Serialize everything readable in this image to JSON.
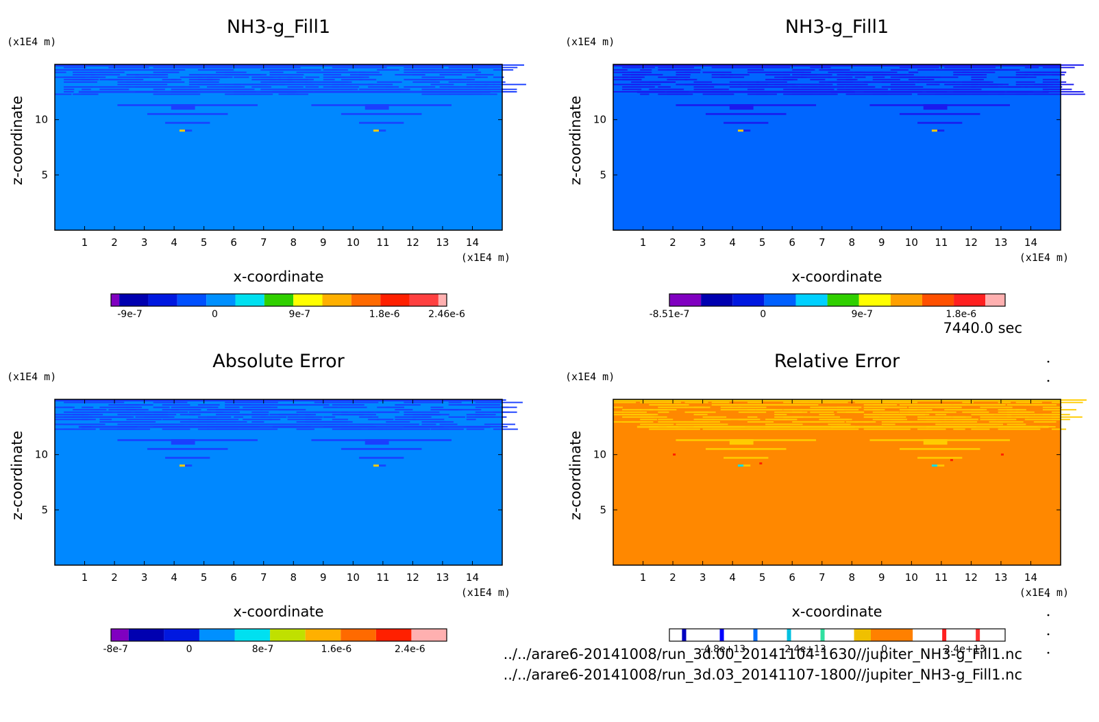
{
  "time_label": "7440.0 sec",
  "files": [
    "../../arare6-20141008/run_3d.00_20141104-1630//jupiter_NH3-g_Fill1.nc",
    "../../arare6-20141008/run_3d.03_20141107-1800//jupiter_NH3-g_Fill1.nc"
  ],
  "chart_data": [
    {
      "type": "heatmap",
      "title": "NH3-g_Fill1",
      "xlabel": "x-coordinate",
      "ylabel": "z-coordinate",
      "x_unit": "(x1E4 m)",
      "y_unit": "(x1E4 m)",
      "xlim": [
        0,
        15
      ],
      "ylim": [
        0,
        15
      ],
      "xticks": [
        "1",
        "2",
        "3",
        "4",
        "5",
        "6",
        "7",
        "8",
        "9",
        "10",
        "11",
        "12",
        "13",
        "14"
      ],
      "yticks": [
        "5",
        "10"
      ],
      "background_color": "#0088ff",
      "feature_color": "#1a3fff",
      "colorbar": {
        "colors": [
          "#8000c0",
          "#0000b0",
          "#0018e0",
          "#0050ff",
          "#0090ff",
          "#00e0f0",
          "#30d000",
          "#ffff00",
          "#ffb000",
          "#ff6a00",
          "#ff2000",
          "#ff4040",
          "#ffb0b0"
        ],
        "widths": [
          1,
          3.5,
          3.5,
          3.5,
          3.5,
          3.5,
          3.5,
          3.5,
          3.5,
          3.5,
          3.5,
          3.5,
          1
        ],
        "labels": [
          "-9e-7",
          "0",
          "9e-7",
          "1.8e-6",
          "2.46e-6"
        ],
        "label_values": [
          -9e-07,
          0,
          9e-07,
          1.8e-06,
          2.46e-06
        ],
        "range": [
          -1.1e-06,
          2.46e-06
        ]
      }
    },
    {
      "type": "heatmap",
      "title": "NH3-g_Fill1",
      "xlabel": "x-coordinate",
      "ylabel": "z-coordinate",
      "x_unit": "(x1E4 m)",
      "y_unit": "(x1E4 m)",
      "xlim": [
        0,
        15
      ],
      "ylim": [
        0,
        15
      ],
      "xticks": [
        "1",
        "2",
        "3",
        "4",
        "5",
        "6",
        "7",
        "8",
        "9",
        "10",
        "11",
        "12",
        "13",
        "14"
      ],
      "yticks": [
        "5",
        "10"
      ],
      "background_color": "#0066ff",
      "feature_color": "#1a1aee",
      "colorbar": {
        "colors": [
          "#8000c0",
          "#0000b0",
          "#0018e0",
          "#0060ff",
          "#00d0ff",
          "#30d000",
          "#ffff00",
          "#ffa000",
          "#ff5000",
          "#ff2020",
          "#ffb0b0"
        ],
        "widths": [
          4,
          4,
          4,
          4,
          4,
          4,
          4,
          4,
          4,
          4,
          2.5
        ],
        "labels": [
          "-8.51e-7",
          "0",
          "9e-7",
          "1.8e-6"
        ],
        "label_values": [
          -8.51e-07,
          0,
          9e-07,
          1.8e-06
        ],
        "range": [
          -8.51e-07,
          2.2e-06
        ]
      }
    },
    {
      "type": "heatmap",
      "title": "Absolute Error",
      "xlabel": "x-coordinate",
      "ylabel": "z-coordinate",
      "x_unit": "(x1E4 m)",
      "y_unit": "(x1E4 m)",
      "xlim": [
        0,
        15
      ],
      "ylim": [
        0,
        15
      ],
      "xticks": [
        "1",
        "2",
        "3",
        "4",
        "5",
        "6",
        "7",
        "8",
        "9",
        "10",
        "11",
        "12",
        "13",
        "14"
      ],
      "yticks": [
        "5",
        "10"
      ],
      "background_color": "#0088ff",
      "feature_color": "#1a3fff",
      "colorbar": {
        "colors": [
          "#8000c0",
          "#0000b0",
          "#0018e0",
          "#0090ff",
          "#00e0f0",
          "#c0e000",
          "#ffb000",
          "#ff6a00",
          "#ff2000",
          "#ffb0b0"
        ],
        "widths": [
          1,
          2,
          2,
          2,
          2,
          2,
          2,
          2,
          2,
          2
        ],
        "labels": [
          "-8e-7",
          "0",
          "8e-7",
          "1.6e-6",
          "2.4e-6"
        ],
        "label_values": [
          -8e-07,
          0,
          8e-07,
          1.6e-06,
          2.4e-06
        ],
        "range": [
          -8.5e-07,
          2.8e-06
        ]
      }
    },
    {
      "type": "heatmap",
      "title": "Relative Error",
      "xlabel": "x-coordinate",
      "ylabel": "z-coordinate",
      "x_unit": "(x1E4 m)",
      "y_unit": "(x1E4 m)",
      "xlim": [
        0,
        15
      ],
      "ylim": [
        0,
        15
      ],
      "xticks": [
        "1",
        "2",
        "3",
        "4",
        "5",
        "6",
        "7",
        "8",
        "9",
        "10",
        "11",
        "12",
        "13",
        "14"
      ],
      "yticks": [
        "5",
        "10"
      ],
      "background_color": "#ff8800",
      "feature_color": "#ffcc00",
      "colorbar": {
        "colors": [
          "#ffffff",
          "#0000c0",
          "#ffffff",
          "#0000ff",
          "#ffffff",
          "#0070ff",
          "#ffffff",
          "#00c0e0",
          "#ffffff",
          "#30e0a0",
          "#ffffff",
          "#f0c000",
          "#ff8000",
          "#ffffff",
          "#ff2020",
          "#ffffff",
          "#ff3030",
          "#ffffff"
        ],
        "widths": [
          3,
          1,
          8,
          1,
          7,
          1,
          7,
          1,
          7,
          1,
          7,
          4,
          10,
          7,
          1,
          7,
          1,
          6
        ],
        "labels": [
          "-4.8e+13",
          "-2.4e+13",
          "0",
          "2.4e+13"
        ],
        "label_values": [
          -48000000000000.0,
          -24000000000000.0,
          0,
          24000000000000.0
        ],
        "range": [
          -64000000000000.0,
          36000000000000.0
        ]
      }
    }
  ]
}
